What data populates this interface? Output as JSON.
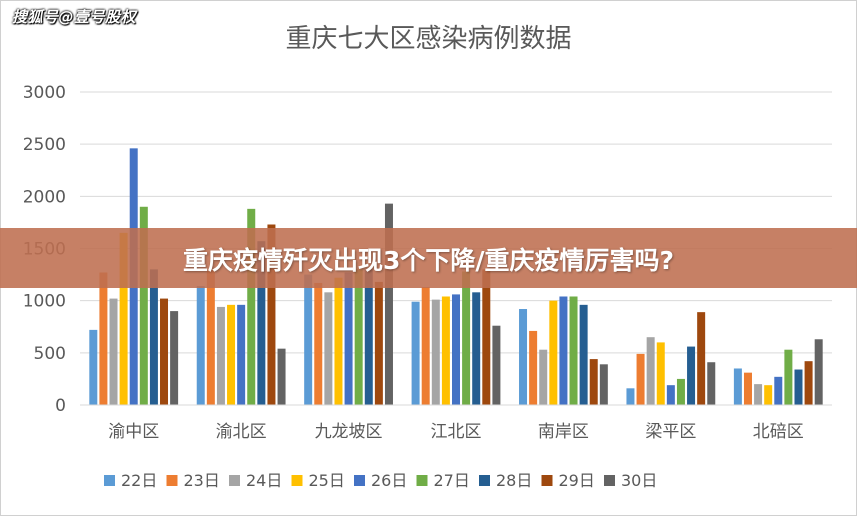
{
  "watermark": "搜狐号@壹号股权",
  "banner": {
    "text": "重庆疫情歼灭出现3个下降/重庆疫情厉害吗?"
  },
  "chart_data": {
    "type": "bar",
    "title": "重庆七大区感染病例数据",
    "xlabel": "",
    "ylabel": "",
    "ylim": [
      0,
      3000
    ],
    "yticks": [
      0,
      500,
      1000,
      1500,
      2000,
      2500,
      3000
    ],
    "grid": true,
    "legend": "bottom",
    "categories": [
      "渝中区",
      "渝北区",
      "九龙坡区",
      "江北区",
      "南岸区",
      "梁平区",
      "北碚区"
    ],
    "series": [
      {
        "name": "22日",
        "color": "#5B9BD5",
        "values": [
          720,
          1140,
          1250,
          990,
          920,
          160,
          350
        ]
      },
      {
        "name": "23日",
        "color": "#ED7D31",
        "values": [
          1270,
          1300,
          1170,
          1130,
          710,
          490,
          310
        ]
      },
      {
        "name": "24日",
        "color": "#A5A5A5",
        "values": [
          1020,
          940,
          1080,
          1010,
          530,
          650,
          200
        ]
      },
      {
        "name": "25日",
        "color": "#FFC000",
        "values": [
          1650,
          960,
          1220,
          1040,
          1000,
          600,
          190
        ]
      },
      {
        "name": "26日",
        "color": "#4472C4",
        "values": [
          2460,
          960,
          1270,
          1060,
          1040,
          190,
          270
        ]
      },
      {
        "name": "27日",
        "color": "#70AD47",
        "values": [
          1900,
          1880,
          1300,
          1280,
          1040,
          250,
          530
        ]
      },
      {
        "name": "28日",
        "color": "#255E91",
        "values": [
          1300,
          1570,
          1300,
          1080,
          960,
          560,
          340
        ]
      },
      {
        "name": "29日",
        "color": "#9E480E",
        "values": [
          1020,
          1730,
          1180,
          1300,
          440,
          890,
          420
        ]
      },
      {
        "name": "30日",
        "color": "#636363",
        "values": [
          900,
          540,
          1930,
          760,
          390,
          410,
          630
        ]
      }
    ]
  }
}
